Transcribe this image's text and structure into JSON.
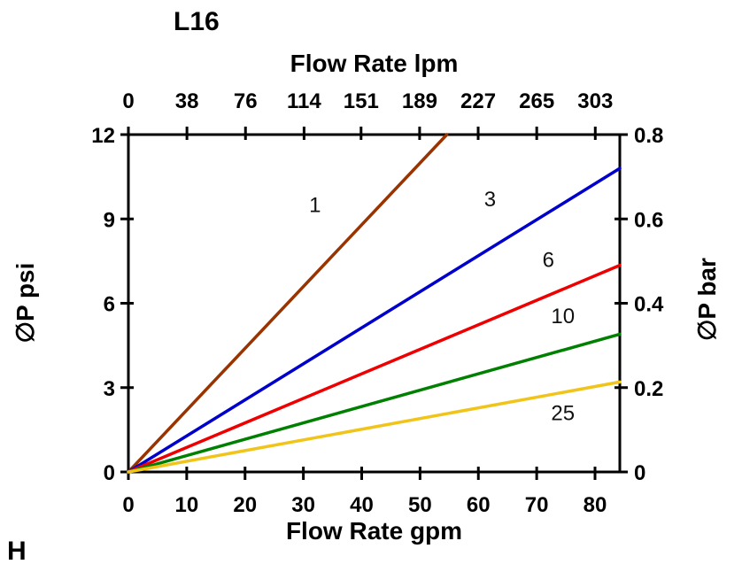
{
  "chart_data": {
    "type": "line",
    "title": "L16",
    "corner_label": "H",
    "top_axis": {
      "label": "Flow Rate lpm",
      "ticks": [
        0,
        38,
        76,
        114,
        151,
        189,
        227,
        265,
        303
      ]
    },
    "bottom_axis": {
      "label": "Flow Rate gpm",
      "ticks": [
        0,
        10,
        20,
        30,
        40,
        50,
        60,
        70,
        80
      ]
    },
    "left_axis": {
      "label": "∅P psi",
      "ticks": [
        0,
        3,
        6,
        9,
        12
      ],
      "range": [
        0,
        12
      ]
    },
    "right_axis": {
      "label": "∅P bar",
      "ticks": [
        0,
        0.2,
        0.4,
        0.6,
        0.8
      ],
      "range": [
        0,
        0.8
      ]
    },
    "x_range_gpm": [
      0,
      84.25
    ],
    "lpm_per_gpm": 3.78541,
    "grid": false,
    "series": [
      {
        "name": "1",
        "color": "#993300",
        "points": [
          [
            0,
            0
          ],
          [
            54.6,
            12
          ]
        ],
        "label": "1",
        "label_pos": [
          32,
          9.5
        ]
      },
      {
        "name": "3",
        "color": "#0000cc",
        "points": [
          [
            0,
            0
          ],
          [
            84.25,
            10.8
          ]
        ],
        "label": "3",
        "label_pos": [
          62,
          9.7
        ]
      },
      {
        "name": "6",
        "color": "#ee0000",
        "points": [
          [
            0,
            0
          ],
          [
            84.25,
            7.35
          ]
        ],
        "label": "6",
        "label_pos": [
          72,
          7.55
        ]
      },
      {
        "name": "10",
        "color": "#008000",
        "points": [
          [
            0,
            0
          ],
          [
            84.25,
            4.9
          ]
        ],
        "label": "10",
        "label_pos": [
          74.5,
          5.55
        ]
      },
      {
        "name": "25",
        "color": "#f0c419",
        "points": [
          [
            0,
            0
          ],
          [
            84.25,
            3.2
          ]
        ],
        "label": "25",
        "label_pos": [
          74.5,
          2.1
        ]
      }
    ]
  }
}
